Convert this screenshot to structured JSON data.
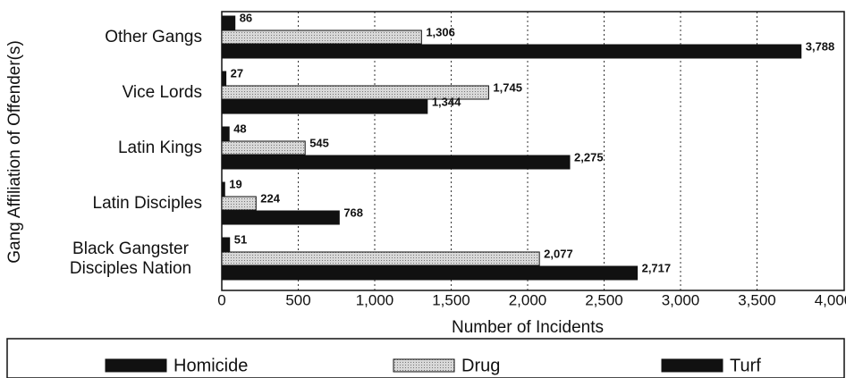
{
  "chart_data": {
    "type": "bar",
    "orientation": "horizontal",
    "xlabel": "Number of Incidents",
    "ylabel": "Gang Affiliation of Offender(s)",
    "categories": [
      "Other Gangs",
      "Vice Lords",
      "Latin Kings",
      "Latin Disciples",
      "Black Gangster Disciples Nation"
    ],
    "series": [
      {
        "name": "Homicide",
        "color": "#111111",
        "values": [
          86,
          27,
          48,
          19,
          51
        ],
        "value_labels": [
          "86",
          "27",
          "48",
          "19",
          "51"
        ]
      },
      {
        "name": "Drug",
        "color": "#c4c4c4",
        "values": [
          1306,
          1745,
          545,
          224,
          2077
        ],
        "value_labels": [
          "1,306",
          "1,745",
          "545",
          "224",
          "2,077"
        ]
      },
      {
        "name": "Turf",
        "color": "#111111",
        "values": [
          3788,
          1344,
          2275,
          768,
          2717
        ],
        "value_labels": [
          "3,788",
          "1,344",
          "2,275",
          "768",
          "2,717"
        ]
      }
    ],
    "xlim": [
      0,
      4000
    ],
    "xticks": [
      0,
      500,
      {
        "value": 1000,
        "label": "1,000"
      },
      {
        "value": 1500,
        "label": "1,500"
      },
      {
        "value": 2000,
        "label": "2,000"
      },
      {
        "value": 2500,
        "label": "2,500"
      },
      {
        "value": 3000,
        "label": "3,000"
      },
      {
        "value": 3500,
        "label": "3,500"
      },
      {
        "value": 4000,
        "label": "4,000"
      }
    ],
    "grid": true,
    "legend": "bottom"
  }
}
